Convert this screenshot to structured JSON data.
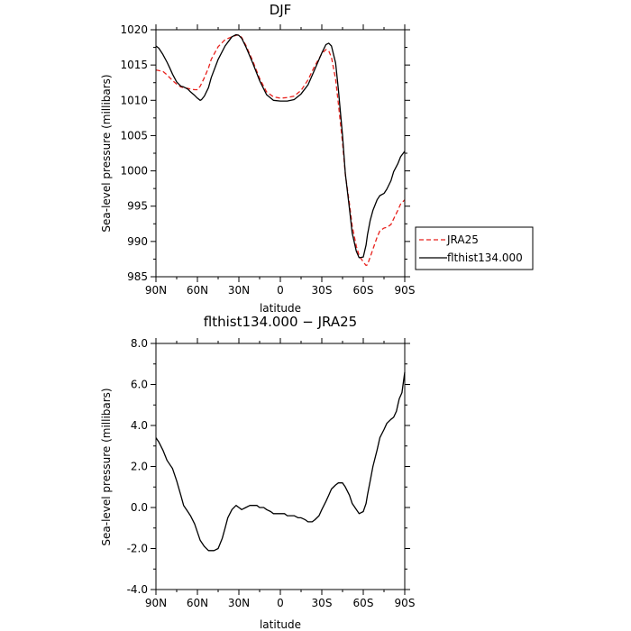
{
  "chart_data": [
    {
      "type": "line",
      "title": "DJF",
      "xlabel": "latitude",
      "ylabel": "Sea-level pressure (millibars)",
      "xlim": [
        90,
        -90
      ],
      "ylim": [
        985,
        1020
      ],
      "yticks": [
        985,
        990,
        995,
        1000,
        1005,
        1010,
        1015,
        1020
      ],
      "ytick_labels": [
        "985",
        "990",
        "995",
        "1000",
        "1005",
        "1010",
        "1015",
        "1020"
      ],
      "xticks": [
        90,
        60,
        30,
        0,
        -30,
        -60,
        -90
      ],
      "xtick_labels": [
        "90N",
        "60N",
        "30N",
        "0",
        "30S",
        "60S",
        "90S"
      ],
      "legend": {
        "position": "right-outside"
      },
      "series": [
        {
          "name": "JRA25",
          "color": "#e8211c",
          "dash": "dashed",
          "x": [
            90,
            85,
            82,
            80,
            78,
            75,
            72,
            70,
            67,
            65,
            62,
            60,
            58,
            55,
            52,
            50,
            45,
            40,
            35,
            32,
            30,
            28,
            25,
            20,
            15,
            10,
            5,
            0,
            -5,
            -10,
            -15,
            -20,
            -25,
            -30,
            -33,
            -35,
            -37,
            -40,
            -42,
            -45,
            -47,
            -50,
            -52,
            -55,
            -57,
            -60,
            -62,
            -63,
            -65,
            -67,
            -70,
            -72,
            -75,
            -77,
            -80,
            -82,
            -85,
            -87,
            -90
          ],
          "y": [
            1014.3,
            1014.1,
            1013.6,
            1013.2,
            1012.8,
            1012.3,
            1011.9,
            1011.8,
            1011.7,
            1011.6,
            1011.5,
            1011.5,
            1012.0,
            1013.2,
            1014.6,
            1015.8,
            1017.6,
            1018.6,
            1019.0,
            1019.2,
            1019.3,
            1018.9,
            1017.8,
            1015.6,
            1013.1,
            1011.2,
            1010.5,
            1010.3,
            1010.4,
            1010.6,
            1011.4,
            1012.9,
            1014.9,
            1016.6,
            1017.2,
            1017.0,
            1016.1,
            1013.0,
            1009.5,
            1004.0,
            999.5,
            995.3,
            992.2,
            989.3,
            988.0,
            987.1,
            986.6,
            986.7,
            987.8,
            988.9,
            990.6,
            991.5,
            991.9,
            992.0,
            992.4,
            993.2,
            994.4,
            995.3,
            995.9
          ]
        },
        {
          "name": "flthist134.000",
          "color": "#000000",
          "dash": "solid",
          "x": [
            90,
            88,
            85,
            82,
            80,
            78,
            75,
            72,
            70,
            67,
            65,
            62,
            60,
            58,
            57,
            55,
            52,
            50,
            45,
            40,
            35,
            32,
            30,
            28,
            25,
            20,
            15,
            10,
            5,
            0,
            -5,
            -10,
            -15,
            -20,
            -25,
            -30,
            -33,
            -35,
            -37,
            -40,
            -42,
            -45,
            -47,
            -50,
            -52,
            -55,
            -57,
            -60,
            -62,
            -63,
            -65,
            -67,
            -70,
            -72,
            -75,
            -77,
            -80,
            -82,
            -85,
            -87,
            -90
          ],
          "y": [
            1017.7,
            1017.4,
            1016.5,
            1015.4,
            1014.6,
            1013.7,
            1012.6,
            1012.0,
            1011.9,
            1011.6,
            1011.2,
            1010.7,
            1010.3,
            1010.0,
            1010.1,
            1010.6,
            1011.8,
            1013.2,
            1015.8,
            1017.7,
            1019.0,
            1019.3,
            1019.2,
            1018.8,
            1017.6,
            1015.3,
            1012.8,
            1010.8,
            1010.0,
            1009.9,
            1009.9,
            1010.1,
            1010.9,
            1012.2,
            1014.4,
            1016.7,
            1017.9,
            1018.1,
            1017.7,
            1015.3,
            1011.5,
            1005.0,
            999.6,
            994.6,
            991.2,
            988.6,
            987.7,
            987.8,
            989.5,
            990.9,
            993.0,
            994.4,
            995.9,
            996.5,
            996.8,
            997.4,
            998.6,
            999.9,
            1001.0,
            1002.0,
            1002.8
          ]
        }
      ]
    },
    {
      "type": "line",
      "title": "flthist134.000 − JRA25",
      "xlabel": "latitude",
      "ylabel": "Sea-level pressure (millibars)",
      "xlim": [
        90,
        -90
      ],
      "ylim": [
        -4,
        8
      ],
      "yticks": [
        -4,
        -2,
        0,
        2,
        4,
        6,
        8
      ],
      "ytick_labels": [
        "-4.0",
        "-2.0",
        "0.0",
        "2.0",
        "4.0",
        "6.0",
        "8.0"
      ],
      "xticks": [
        90,
        60,
        30,
        0,
        -30,
        -60,
        -90
      ],
      "xtick_labels": [
        "90N",
        "60N",
        "30N",
        "0",
        "30S",
        "60S",
        "90S"
      ],
      "series": [
        {
          "color": "#000000",
          "dash": "solid",
          "x": [
            90,
            88,
            85,
            82,
            80,
            78,
            75,
            72,
            70,
            67,
            65,
            62,
            60,
            58,
            55,
            52,
            50,
            48,
            45,
            42,
            40,
            38,
            35,
            32,
            30,
            28,
            25,
            22,
            20,
            17,
            15,
            12,
            10,
            7,
            5,
            2,
            0,
            -3,
            -5,
            -8,
            -10,
            -13,
            -15,
            -18,
            -20,
            -23,
            -25,
            -28,
            -30,
            -33,
            -35,
            -37,
            -40,
            -42,
            -45,
            -47,
            -50,
            -52,
            -55,
            -57,
            -60,
            -62,
            -63,
            -65,
            -67,
            -70,
            -72,
            -75,
            -77,
            -80,
            -82,
            -84,
            -85,
            -86,
            -88,
            -90
          ],
          "y": [
            3.4,
            3.2,
            2.8,
            2.3,
            2.1,
            1.9,
            1.3,
            0.6,
            0.1,
            -0.2,
            -0.4,
            -0.8,
            -1.2,
            -1.6,
            -1.9,
            -2.1,
            -2.1,
            -2.1,
            -2.0,
            -1.5,
            -1.0,
            -0.5,
            -0.1,
            0.1,
            0.0,
            -0.1,
            0.0,
            0.1,
            0.1,
            0.1,
            0.0,
            0.0,
            -0.1,
            -0.2,
            -0.3,
            -0.3,
            -0.3,
            -0.3,
            -0.4,
            -0.4,
            -0.4,
            -0.5,
            -0.5,
            -0.6,
            -0.7,
            -0.7,
            -0.6,
            -0.4,
            -0.1,
            0.3,
            0.6,
            0.9,
            1.1,
            1.2,
            1.2,
            1.0,
            0.6,
            0.2,
            -0.1,
            -0.3,
            -0.2,
            0.2,
            0.6,
            1.3,
            2.0,
            2.8,
            3.4,
            3.8,
            4.1,
            4.3,
            4.4,
            4.7,
            5.0,
            5.3,
            5.6,
            6.6
          ]
        }
      ]
    }
  ]
}
